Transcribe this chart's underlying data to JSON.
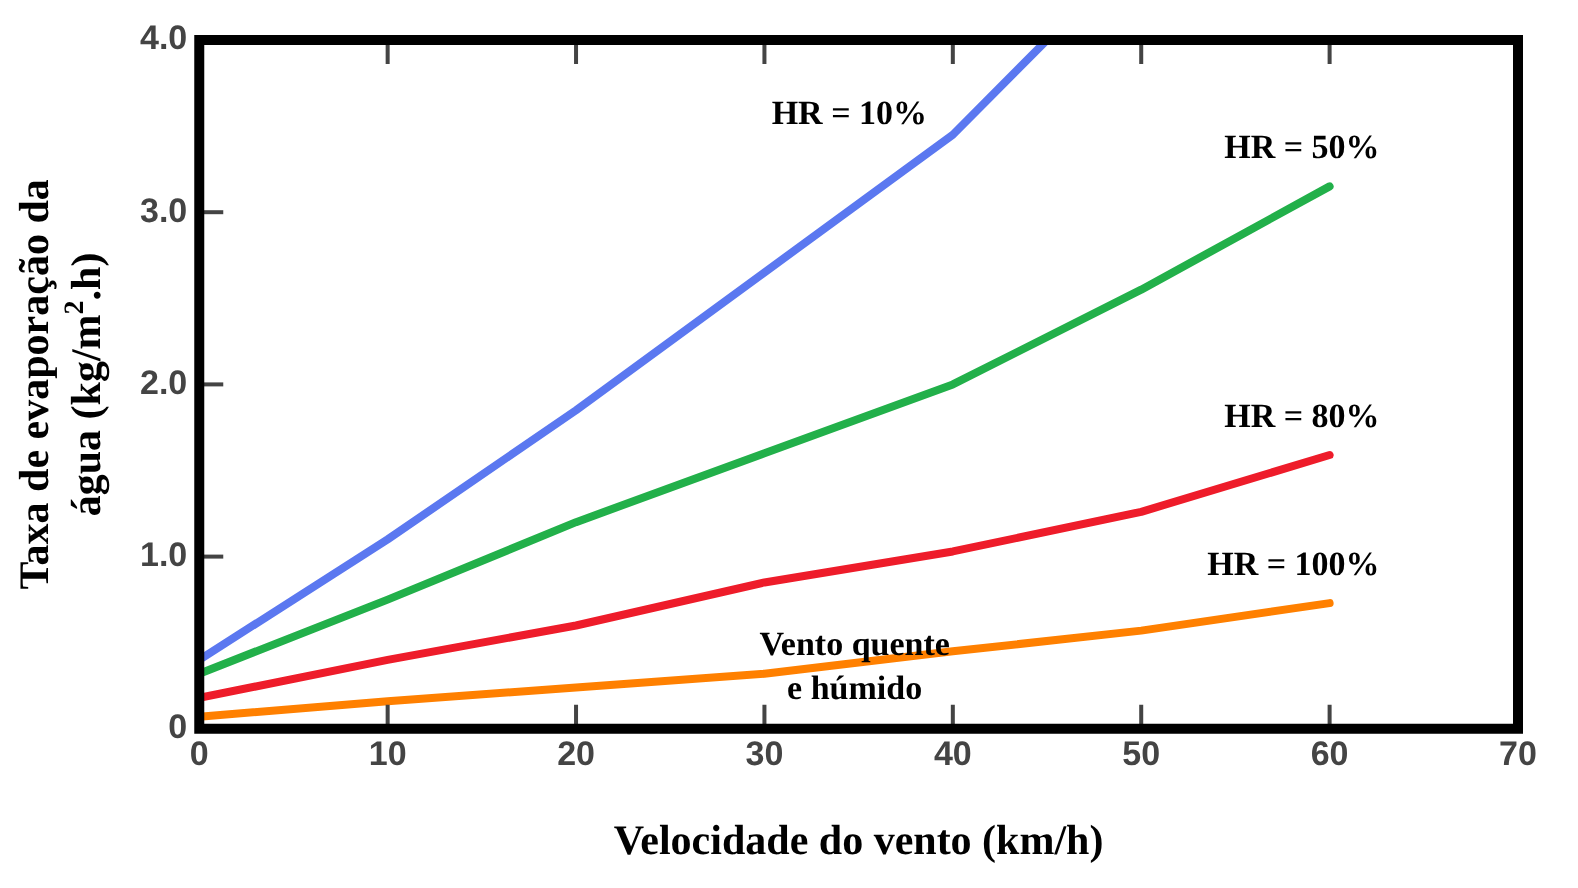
{
  "chart_data": {
    "type": "line",
    "xlabel": "Velocidade do vento (km/h)",
    "ylabel": "Taxa de evaporação da\nágua (kg/m$^{2}$.h)",
    "xlim": [
      0,
      70
    ],
    "xticks": [
      0,
      10,
      20,
      30,
      40,
      50,
      60,
      70
    ],
    "ylim": [
      0,
      4
    ],
    "yticks": [
      {
        "value": 0,
        "label": "0"
      },
      {
        "value": 1,
        "label": "1.0"
      },
      {
        "value": 2,
        "label": "2.0"
      },
      {
        "value": 3,
        "label": "3.0"
      },
      {
        "value": 4,
        "label": "4.0"
      }
    ],
    "grid": false,
    "legend": false,
    "marker": "none",
    "line_style": "solid",
    "series": [
      {
        "name": "HR = 10%",
        "color": "#5b78f0",
        "x": [
          0,
          10,
          20,
          30,
          40,
          45
        ],
        "values": [
          0.4,
          1.1,
          1.85,
          2.65,
          3.45,
          4.0
        ]
      },
      {
        "name": "HR = 50%",
        "color": "#22b04a",
        "x": [
          0,
          10,
          20,
          30,
          40,
          50,
          60
        ],
        "values": [
          0.32,
          0.75,
          1.2,
          1.6,
          2.0,
          2.55,
          3.15
        ]
      },
      {
        "name": "HR = 80%",
        "color": "#ee1c2a",
        "x": [
          0,
          10,
          20,
          30,
          40,
          50,
          60
        ],
        "values": [
          0.18,
          0.4,
          0.6,
          0.85,
          1.03,
          1.26,
          1.59
        ]
      },
      {
        "name": "HR = 100%",
        "color": "#ff8000",
        "x": [
          0,
          10,
          20,
          30,
          40,
          50,
          60
        ],
        "values": [
          0.07,
          0.16,
          0.24,
          0.32,
          0.45,
          0.57,
          0.73
        ]
      }
    ],
    "annotations": [
      {
        "text": "Vento quente\ne húmido",
        "x": 35,
        "y": 0.38
      }
    ]
  }
}
